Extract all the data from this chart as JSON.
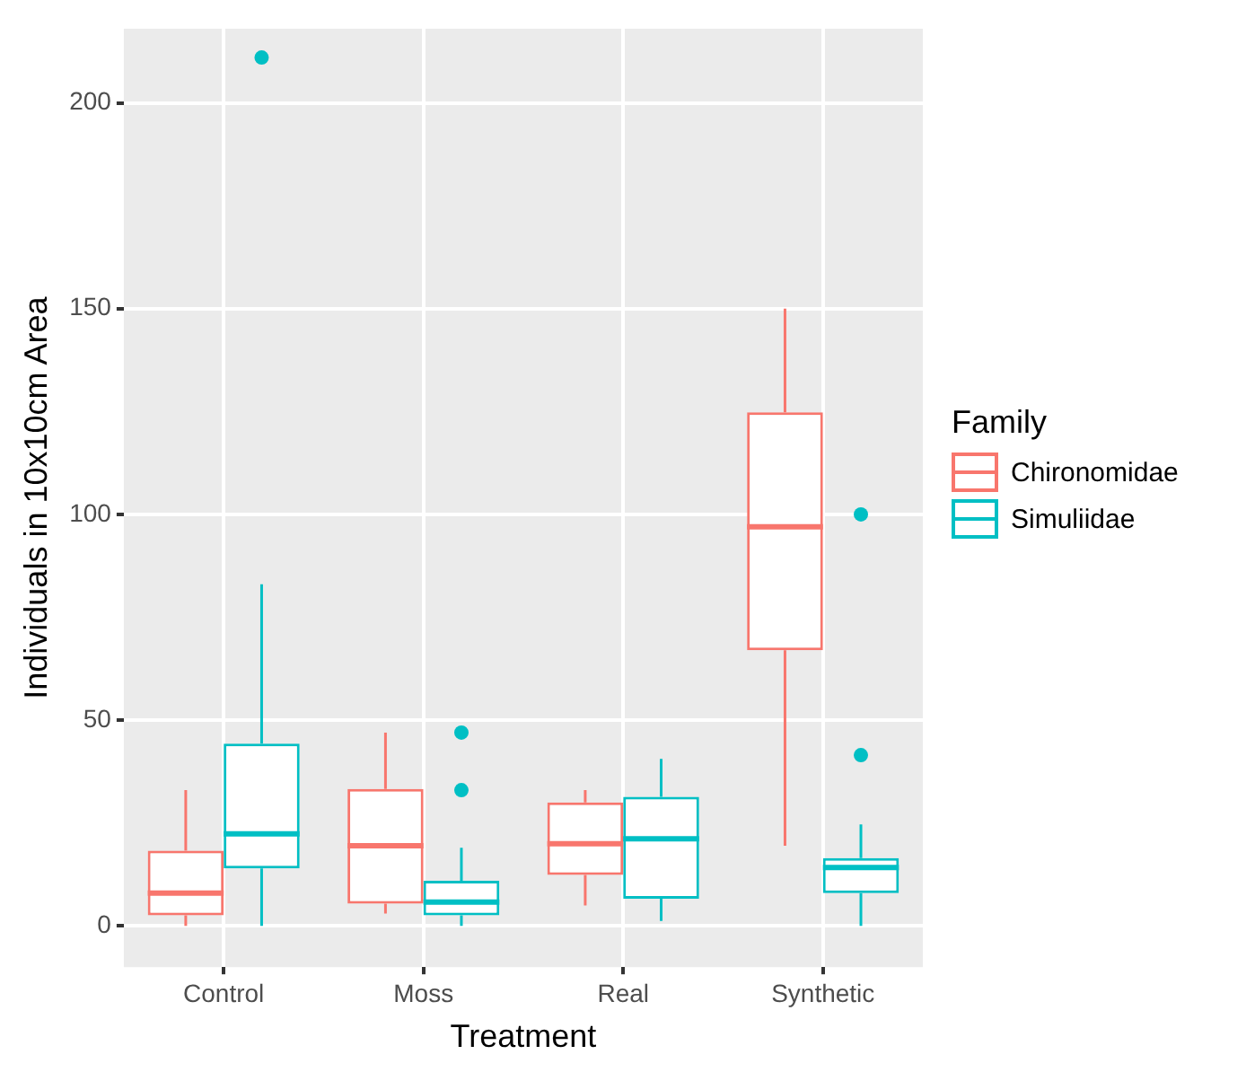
{
  "chart_data": {
    "type": "box",
    "xlabel": "Treatment",
    "ylabel": "Individuals in 10x10cm Area",
    "legend_title": "Family",
    "categories": [
      "Control",
      "Moss",
      "Real",
      "Synthetic"
    ],
    "ylim": [
      -10,
      218
    ],
    "yticks": [
      0,
      50,
      100,
      150,
      200
    ],
    "grid": true,
    "legend": "right",
    "series": [
      {
        "name": "Chironomidae",
        "color": "#f8766d",
        "boxes": [
          {
            "low": 0,
            "q1": 2.6,
            "median": 8,
            "q3": 18.3,
            "high": 33
          },
          {
            "low": 3,
            "q1": 5.4,
            "median": 19.5,
            "q3": 33.3,
            "high": 47
          },
          {
            "low": 5,
            "q1": 12.4,
            "median": 20,
            "q3": 30,
            "high": 33
          },
          {
            "low": 19.5,
            "q1": 67,
            "median": 97,
            "q3": 124.8,
            "high": 150
          }
        ]
      },
      {
        "name": "Simuliidae",
        "color": "#00bfc4",
        "boxes": [
          {
            "low": 0,
            "q1": 14,
            "median": 22.4,
            "q3": 44.3,
            "high": 83,
            "outliers": [
              211
            ]
          },
          {
            "low": 0,
            "q1": 2.6,
            "median": 5.8,
            "q3": 11,
            "high": 19,
            "outliers": [
              47,
              33
            ]
          },
          {
            "low": 1.2,
            "q1": 6.6,
            "median": 21.2,
            "q3": 31.4,
            "high": 40.6
          },
          {
            "low": 0,
            "q1": 8,
            "median": 14.2,
            "q3": 16.5,
            "high": 24.7,
            "outliers": [
              100,
              41.5
            ]
          }
        ]
      }
    ]
  }
}
